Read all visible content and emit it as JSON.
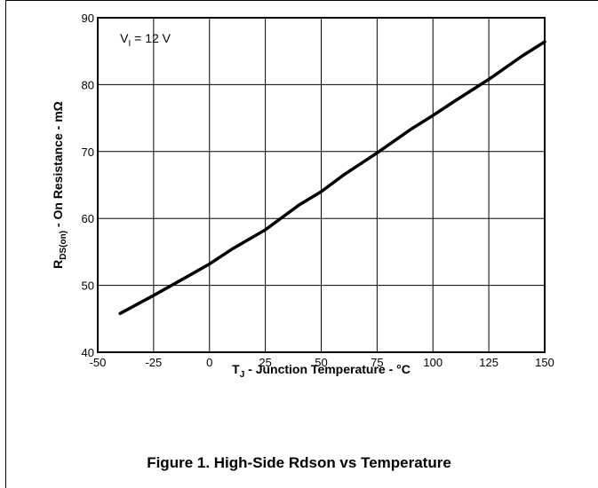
{
  "chart_data": {
    "type": "line",
    "caption": "Figure 1. High-Side Rdson vs Temperature",
    "xlabel": {
      "main": "T",
      "sub": "J",
      "rest": " - Junction Temperature - °C"
    },
    "ylabel": {
      "main": "R",
      "sub": "DS(on)",
      "rest": " - On Resistance - mΩ"
    },
    "annotation": {
      "main": "V",
      "sub": "I",
      "rest": " = 12 V"
    },
    "xlim": [
      -50,
      150
    ],
    "ylim": [
      40,
      90
    ],
    "x_ticks": [
      -50,
      -25,
      0,
      25,
      50,
      75,
      100,
      125,
      150
    ],
    "y_ticks": [
      40,
      50,
      60,
      70,
      80,
      90
    ],
    "grid": true,
    "series": [
      {
        "color": "#000000",
        "x": [
          -40,
          -25,
          -10,
          0,
          10,
          25,
          40,
          50,
          60,
          75,
          90,
          100,
          110,
          125,
          140,
          150
        ],
        "y": [
          45.8,
          48.5,
          51.3,
          53.2,
          55.4,
          58.3,
          62.0,
          64.0,
          66.5,
          69.8,
          73.3,
          75.4,
          77.6,
          80.8,
          84.3,
          86.4
        ]
      }
    ]
  }
}
